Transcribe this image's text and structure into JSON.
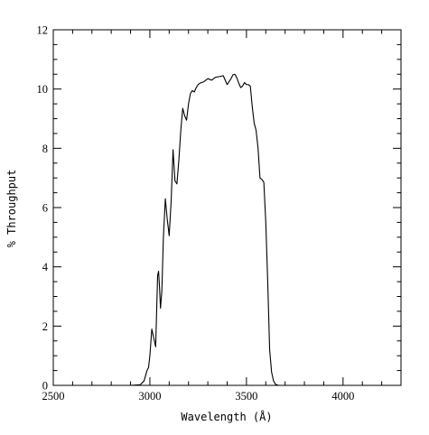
{
  "chart_data": {
    "type": "line",
    "title": "",
    "xlabel": "Wavelength (Å)",
    "ylabel": "% Throughput",
    "xlim": [
      2500,
      4300
    ],
    "ylim": [
      0,
      12
    ],
    "x_ticks": [
      2500,
      3000,
      3500,
      4000
    ],
    "x_tick_labels": [
      "2500",
      "3000",
      "3500",
      "4000"
    ],
    "y_ticks": [
      0,
      2,
      4,
      6,
      8,
      10,
      12
    ],
    "y_tick_labels": [
      "0",
      "2",
      "4",
      "6",
      "8",
      "10",
      "12"
    ],
    "grid": false,
    "colors": {
      "line": "#000000",
      "axes": "#000000",
      "background": "#ffffff"
    },
    "series": [
      {
        "x": [
          2900,
          2950,
          2970,
          2985,
          2993,
          3000,
          3010,
          3020,
          3030,
          3040,
          3045,
          3050,
          3055,
          3062,
          3070,
          3080,
          3090,
          3100,
          3110,
          3120,
          3130,
          3140,
          3150,
          3160,
          3170,
          3180,
          3190,
          3200,
          3210,
          3220,
          3230,
          3240,
          3250,
          3260,
          3280,
          3300,
          3320,
          3340,
          3360,
          3380,
          3400,
          3410,
          3420,
          3430,
          3440,
          3450,
          3460,
          3470,
          3480,
          3490,
          3500,
          3510,
          3520,
          3530,
          3540,
          3550,
          3560,
          3570,
          3580,
          3590,
          3600,
          3610,
          3620,
          3630,
          3640,
          3650,
          3660,
          3670,
          3680,
          3690,
          3700,
          3710,
          3720,
          3730,
          3740,
          3760,
          3800
        ],
        "y": [
          0,
          0.02,
          0.15,
          0.5,
          0.6,
          1.0,
          1.9,
          1.6,
          1.3,
          3.7,
          3.85,
          3.3,
          2.6,
          3.2,
          5.0,
          6.3,
          5.6,
          5.05,
          6.2,
          7.95,
          6.9,
          6.8,
          7.6,
          8.6,
          9.35,
          9.1,
          8.95,
          9.5,
          9.85,
          9.95,
          9.9,
          10.05,
          10.15,
          10.2,
          10.25,
          10.35,
          10.3,
          10.4,
          10.42,
          10.45,
          10.15,
          10.25,
          10.35,
          10.48,
          10.5,
          10.38,
          10.2,
          10.05,
          10.1,
          10.22,
          10.15,
          10.15,
          10.1,
          9.4,
          8.85,
          8.6,
          8.0,
          7.0,
          6.95,
          6.85,
          5.5,
          3.5,
          1.2,
          0.45,
          0.15,
          0.04,
          0.01,
          0,
          0,
          0,
          0,
          0,
          0,
          0,
          0,
          0,
          0
        ]
      }
    ]
  }
}
